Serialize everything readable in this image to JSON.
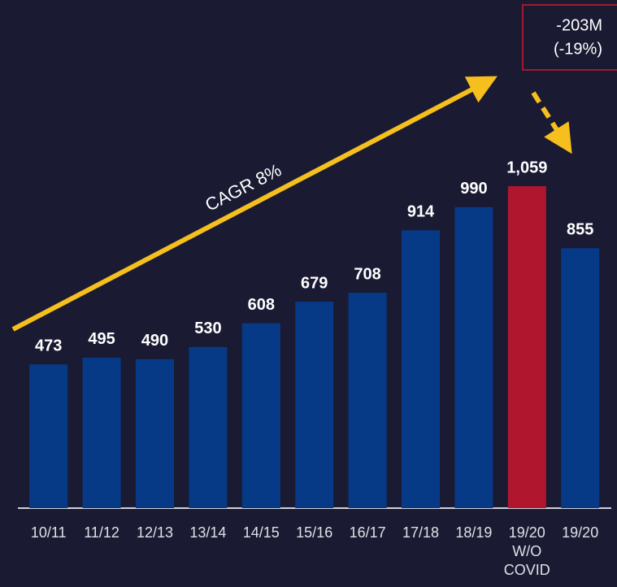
{
  "chart_data": {
    "type": "bar",
    "categories": [
      "10/11",
      "11/12",
      "12/13",
      "13/14",
      "14/15",
      "15/16",
      "16/17",
      "17/18",
      "18/19",
      "19/20 W/O COVID",
      "19/20"
    ],
    "values": [
      473,
      495,
      490,
      530,
      608,
      679,
      708,
      914,
      990,
      1059,
      855
    ],
    "value_labels": [
      "473",
      "495",
      "490",
      "530",
      "608",
      "679",
      "708",
      "914",
      "990",
      "1,059",
      "855"
    ],
    "colors": [
      "#063a87",
      "#063a87",
      "#063a87",
      "#063a87",
      "#063a87",
      "#063a87",
      "#063a87",
      "#063a87",
      "#063a87",
      "#b0172f",
      "#063a87"
    ],
    "annotations": {
      "trend": "CAGR 8%",
      "change": [
        "-203M",
        "(-19%)"
      ]
    }
  }
}
